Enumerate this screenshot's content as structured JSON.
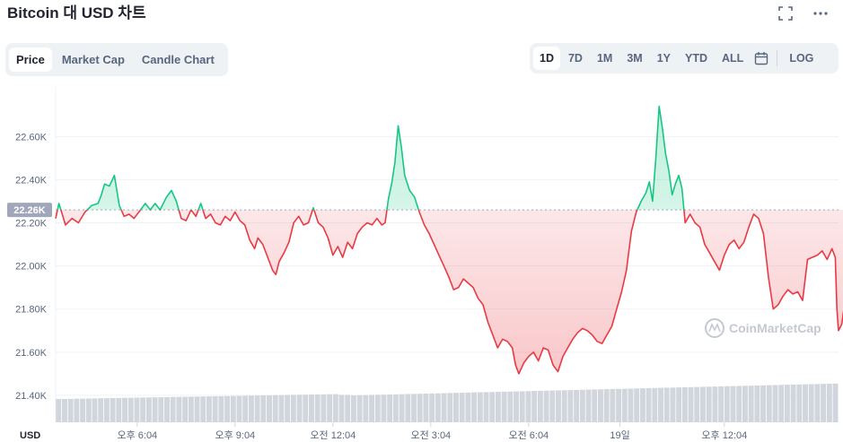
{
  "header": {
    "title": "Bitcoin 대 USD 차트",
    "fullscreen_icon": "fullscreen-icon",
    "more_icon": "more-icon"
  },
  "chart_tabs": [
    "Price",
    "Market Cap",
    "Candle Chart"
  ],
  "active_chart_tab": "Price",
  "ranges": [
    "1D",
    "7D",
    "1M",
    "3M",
    "1Y",
    "YTD",
    "ALL"
  ],
  "active_range": "1D",
  "calendar_icon": "calendar-icon",
  "log_label": "LOG",
  "watermark": "CoinMarketCap",
  "colors": {
    "up": "#16c784",
    "down": "#ea3943",
    "grid": "#eff2f5",
    "axis_text": "#58667e",
    "volume": "#d1d5dc",
    "badge": "#a1a7bb"
  },
  "chart_data": {
    "type": "line",
    "currency_label": "USD",
    "reference_price": "22.26K",
    "reference_value": 22260,
    "y_ticks": [
      "22.60K",
      "22.40K",
      "22.20K",
      "22.00K",
      "21.80K",
      "21.60K",
      "21.40K"
    ],
    "y_tick_values": [
      22600,
      22400,
      22200,
      22000,
      21800,
      21600,
      21400
    ],
    "ylim": [
      21275,
      22830
    ],
    "x_ticks": [
      "오후 6:04",
      "오후 9:04",
      "오전 12:04",
      "오전 3:04",
      "오전 6:04",
      "19일",
      "오후 12:04"
    ],
    "x_tick_hours": [
      2.5,
      5.5,
      8.5,
      11.5,
      14.5,
      17.3,
      20.5
    ],
    "x_range_hours": [
      0,
      24
    ],
    "series": [
      {
        "values": [
          [
            0.0,
            22220
          ],
          [
            0.1,
            22290
          ],
          [
            0.2,
            22240
          ],
          [
            0.3,
            22190
          ],
          [
            0.5,
            22220
          ],
          [
            0.7,
            22200
          ],
          [
            0.9,
            22250
          ],
          [
            1.1,
            22280
          ],
          [
            1.3,
            22290
          ],
          [
            1.4,
            22330
          ],
          [
            1.5,
            22380
          ],
          [
            1.65,
            22370
          ],
          [
            1.8,
            22420
          ],
          [
            1.95,
            22280
          ],
          [
            2.1,
            22230
          ],
          [
            2.25,
            22240
          ],
          [
            2.4,
            22220
          ],
          [
            2.6,
            22260
          ],
          [
            2.75,
            22290
          ],
          [
            2.9,
            22260
          ],
          [
            3.05,
            22290
          ],
          [
            3.2,
            22260
          ],
          [
            3.4,
            22320
          ],
          [
            3.55,
            22350
          ],
          [
            3.7,
            22300
          ],
          [
            3.85,
            22220
          ],
          [
            4.0,
            22210
          ],
          [
            4.15,
            22260
          ],
          [
            4.3,
            22230
          ],
          [
            4.45,
            22290
          ],
          [
            4.6,
            22220
          ],
          [
            4.75,
            22240
          ],
          [
            4.9,
            22200
          ],
          [
            5.05,
            22190
          ],
          [
            5.2,
            22230
          ],
          [
            5.35,
            22210
          ],
          [
            5.5,
            22250
          ],
          [
            5.65,
            22210
          ],
          [
            5.8,
            22190
          ],
          [
            5.95,
            22120
          ],
          [
            6.1,
            22080
          ],
          [
            6.2,
            22130
          ],
          [
            6.35,
            22100
          ],
          [
            6.5,
            22040
          ],
          [
            6.65,
            21980
          ],
          [
            6.75,
            21960
          ],
          [
            6.85,
            22020
          ],
          [
            7.0,
            22060
          ],
          [
            7.15,
            22110
          ],
          [
            7.3,
            22200
          ],
          [
            7.45,
            22230
          ],
          [
            7.6,
            22190
          ],
          [
            7.75,
            22200
          ],
          [
            7.9,
            22270
          ],
          [
            8.05,
            22200
          ],
          [
            8.2,
            22180
          ],
          [
            8.35,
            22130
          ],
          [
            8.5,
            22050
          ],
          [
            8.65,
            22090
          ],
          [
            8.8,
            22040
          ],
          [
            8.95,
            22110
          ],
          [
            9.1,
            22080
          ],
          [
            9.25,
            22150
          ],
          [
            9.4,
            22180
          ],
          [
            9.55,
            22200
          ],
          [
            9.7,
            22190
          ],
          [
            9.85,
            22220
          ],
          [
            10.0,
            22190
          ],
          [
            10.1,
            22200
          ],
          [
            10.2,
            22310
          ],
          [
            10.3,
            22380
          ],
          [
            10.4,
            22480
          ],
          [
            10.5,
            22650
          ],
          [
            10.6,
            22550
          ],
          [
            10.7,
            22420
          ],
          [
            10.85,
            22350
          ],
          [
            11.0,
            22320
          ],
          [
            11.15,
            22250
          ],
          [
            11.3,
            22190
          ],
          [
            11.45,
            22150
          ],
          [
            11.6,
            22100
          ],
          [
            11.75,
            22050
          ],
          [
            11.9,
            22000
          ],
          [
            12.05,
            21950
          ],
          [
            12.2,
            21890
          ],
          [
            12.35,
            21900
          ],
          [
            12.5,
            21940
          ],
          [
            12.65,
            21920
          ],
          [
            12.8,
            21900
          ],
          [
            12.95,
            21850
          ],
          [
            13.1,
            21820
          ],
          [
            13.25,
            21740
          ],
          [
            13.4,
            21680
          ],
          [
            13.55,
            21620
          ],
          [
            13.7,
            21660
          ],
          [
            13.85,
            21650
          ],
          [
            14.0,
            21620
          ],
          [
            14.1,
            21540
          ],
          [
            14.2,
            21500
          ],
          [
            14.35,
            21550
          ],
          [
            14.5,
            21580
          ],
          [
            14.65,
            21600
          ],
          [
            14.8,
            21560
          ],
          [
            14.95,
            21620
          ],
          [
            15.1,
            21610
          ],
          [
            15.25,
            21540
          ],
          [
            15.4,
            21510
          ],
          [
            15.55,
            21580
          ],
          [
            15.7,
            21620
          ],
          [
            15.85,
            21660
          ],
          [
            16.0,
            21690
          ],
          [
            16.15,
            21710
          ],
          [
            16.3,
            21700
          ],
          [
            16.45,
            21680
          ],
          [
            16.6,
            21650
          ],
          [
            16.75,
            21640
          ],
          [
            16.9,
            21680
          ],
          [
            17.05,
            21720
          ],
          [
            17.2,
            21800
          ],
          [
            17.35,
            21880
          ],
          [
            17.5,
            21980
          ],
          [
            17.65,
            22160
          ],
          [
            17.8,
            22250
          ],
          [
            17.95,
            22300
          ],
          [
            18.1,
            22340
          ],
          [
            18.2,
            22390
          ],
          [
            18.3,
            22300
          ],
          [
            18.4,
            22500
          ],
          [
            18.5,
            22740
          ],
          [
            18.6,
            22640
          ],
          [
            18.7,
            22520
          ],
          [
            18.8,
            22440
          ],
          [
            18.9,
            22330
          ],
          [
            19.0,
            22380
          ],
          [
            19.1,
            22420
          ],
          [
            19.2,
            22360
          ],
          [
            19.3,
            22200
          ],
          [
            19.45,
            22240
          ],
          [
            19.6,
            22200
          ],
          [
            19.75,
            22180
          ],
          [
            19.9,
            22100
          ],
          [
            20.05,
            22060
          ],
          [
            20.2,
            22020
          ],
          [
            20.35,
            21980
          ],
          [
            20.5,
            22050
          ],
          [
            20.65,
            22100
          ],
          [
            20.8,
            22120
          ],
          [
            20.95,
            22080
          ],
          [
            21.1,
            22110
          ],
          [
            21.25,
            22180
          ],
          [
            21.4,
            22240
          ],
          [
            21.55,
            22220
          ],
          [
            21.7,
            22150
          ],
          [
            21.85,
            21950
          ],
          [
            22.0,
            21800
          ],
          [
            22.15,
            21820
          ],
          [
            22.3,
            21860
          ],
          [
            22.45,
            21890
          ],
          [
            22.6,
            21870
          ],
          [
            22.75,
            21880
          ],
          [
            22.9,
            21840
          ],
          [
            23.05,
            22030
          ],
          [
            23.2,
            22040
          ],
          [
            23.35,
            22050
          ],
          [
            23.5,
            22070
          ],
          [
            23.65,
            22030
          ],
          [
            23.8,
            22080
          ],
          [
            23.9,
            22040
          ],
          [
            23.95,
            21800
          ],
          [
            24.0,
            21700
          ],
          [
            24.1,
            21730
          ],
          [
            24.2,
            21840
          ]
        ]
      }
    ],
    "volume_levels": {
      "start": 0.55,
      "jump_hour": 8.7,
      "end": 0.92
    },
    "grid": true
  }
}
